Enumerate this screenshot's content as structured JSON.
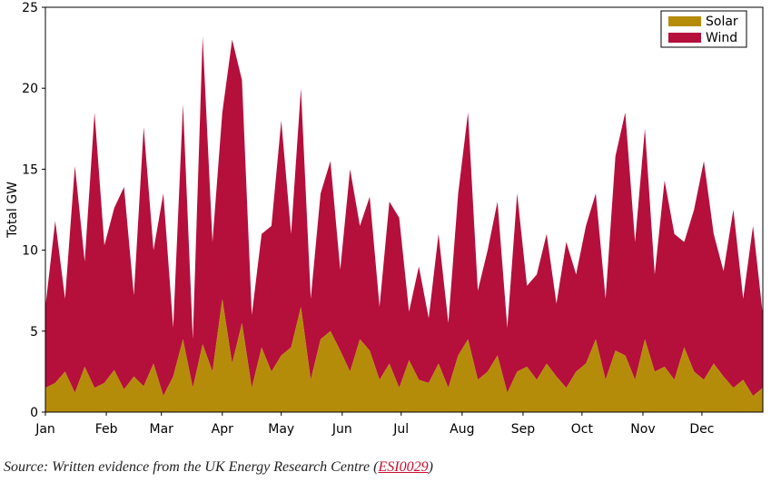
{
  "colors": {
    "solar": "#b58c0a",
    "wind": "#b50f3c"
  },
  "source": {
    "prefix": "Source: Written evidence from the UK Energy Research Centre (",
    "link": "ESI0029",
    "suffix": ")"
  },
  "chart_data": {
    "type": "area",
    "stacked": true,
    "ylabel": "Total GW",
    "ylim": [
      0,
      25
    ],
    "yticks": [
      0,
      5,
      10,
      15,
      20,
      25
    ],
    "xlim": [
      0,
      365
    ],
    "month_ticks": [
      {
        "label": "Jan",
        "day": 0
      },
      {
        "label": "Feb",
        "day": 31
      },
      {
        "label": "Mar",
        "day": 59
      },
      {
        "label": "Apr",
        "day": 90
      },
      {
        "label": "May",
        "day": 120
      },
      {
        "label": "Jun",
        "day": 151
      },
      {
        "label": "Jul",
        "day": 181
      },
      {
        "label": "Aug",
        "day": 212
      },
      {
        "label": "Sep",
        "day": 243
      },
      {
        "label": "Oct",
        "day": 273
      },
      {
        "label": "Nov",
        "day": 304
      },
      {
        "label": "Dec",
        "day": 334
      }
    ],
    "legend": {
      "position": "top-right"
    },
    "x": [
      0,
      5,
      10,
      15,
      20,
      25,
      30,
      35,
      40,
      45,
      50,
      55,
      60,
      65,
      70,
      75,
      80,
      85,
      90,
      95,
      100,
      105,
      110,
      115,
      120,
      125,
      130,
      135,
      140,
      145,
      150,
      155,
      160,
      165,
      170,
      175,
      180,
      185,
      190,
      195,
      200,
      205,
      210,
      215,
      220,
      225,
      230,
      235,
      240,
      245,
      250,
      255,
      260,
      265,
      270,
      275,
      280,
      285,
      290,
      295,
      300,
      305,
      310,
      315,
      320,
      325,
      330,
      335,
      340,
      345,
      350,
      355,
      360,
      365
    ],
    "series": [
      {
        "name": "Solar",
        "values": [
          1.5,
          1.8,
          2.5,
          1.2,
          2.8,
          1.5,
          1.8,
          2.6,
          1.4,
          2.2,
          1.6,
          3.0,
          1.0,
          2.2,
          4.5,
          1.5,
          4.2,
          2.5,
          7.0,
          3.0,
          5.5,
          1.5,
          4.0,
          2.5,
          3.5,
          4.0,
          6.5,
          2.0,
          4.5,
          5.0,
          3.8,
          2.5,
          4.5,
          3.8,
          2.0,
          3.0,
          1.5,
          3.2,
          2.0,
          1.8,
          3.0,
          1.5,
          3.5,
          4.5,
          2.0,
          2.5,
          3.5,
          1.2,
          2.5,
          2.8,
          2.0,
          3.0,
          2.2,
          1.5,
          2.5,
          3.0,
          4.5,
          2.0,
          3.8,
          3.5,
          2.0,
          4.5,
          2.5,
          2.8,
          2.0,
          4.0,
          2.5,
          2.0,
          3.0,
          2.2,
          1.5,
          2.0,
          1.0,
          1.5
        ]
      },
      {
        "name": "Wind",
        "values": [
          5.0,
          10.0,
          4.5,
          14.0,
          6.5,
          17.0,
          8.5,
          10.0,
          12.5,
          5.0,
          16.0,
          7.0,
          12.5,
          3.0,
          14.5,
          3.0,
          19.0,
          8.0,
          11.5,
          20.0,
          15.0,
          4.5,
          7.0,
          9.0,
          14.5,
          7.0,
          13.5,
          5.0,
          9.0,
          10.5,
          5.0,
          12.5,
          7.0,
          9.5,
          4.5,
          10.0,
          10.5,
          3.0,
          7.0,
          4.0,
          8.0,
          4.0,
          10.0,
          14.0,
          5.5,
          7.5,
          9.5,
          4.0,
          11.0,
          5.0,
          6.5,
          8.0,
          4.5,
          9.0,
          6.0,
          8.5,
          9.0,
          5.0,
          12.0,
          15.0,
          8.5,
          13.0,
          6.0,
          11.5,
          9.0,
          6.5,
          10.0,
          13.5,
          8.0,
          6.5,
          11.0,
          5.0,
          10.5,
          4.5
        ]
      }
    ]
  }
}
